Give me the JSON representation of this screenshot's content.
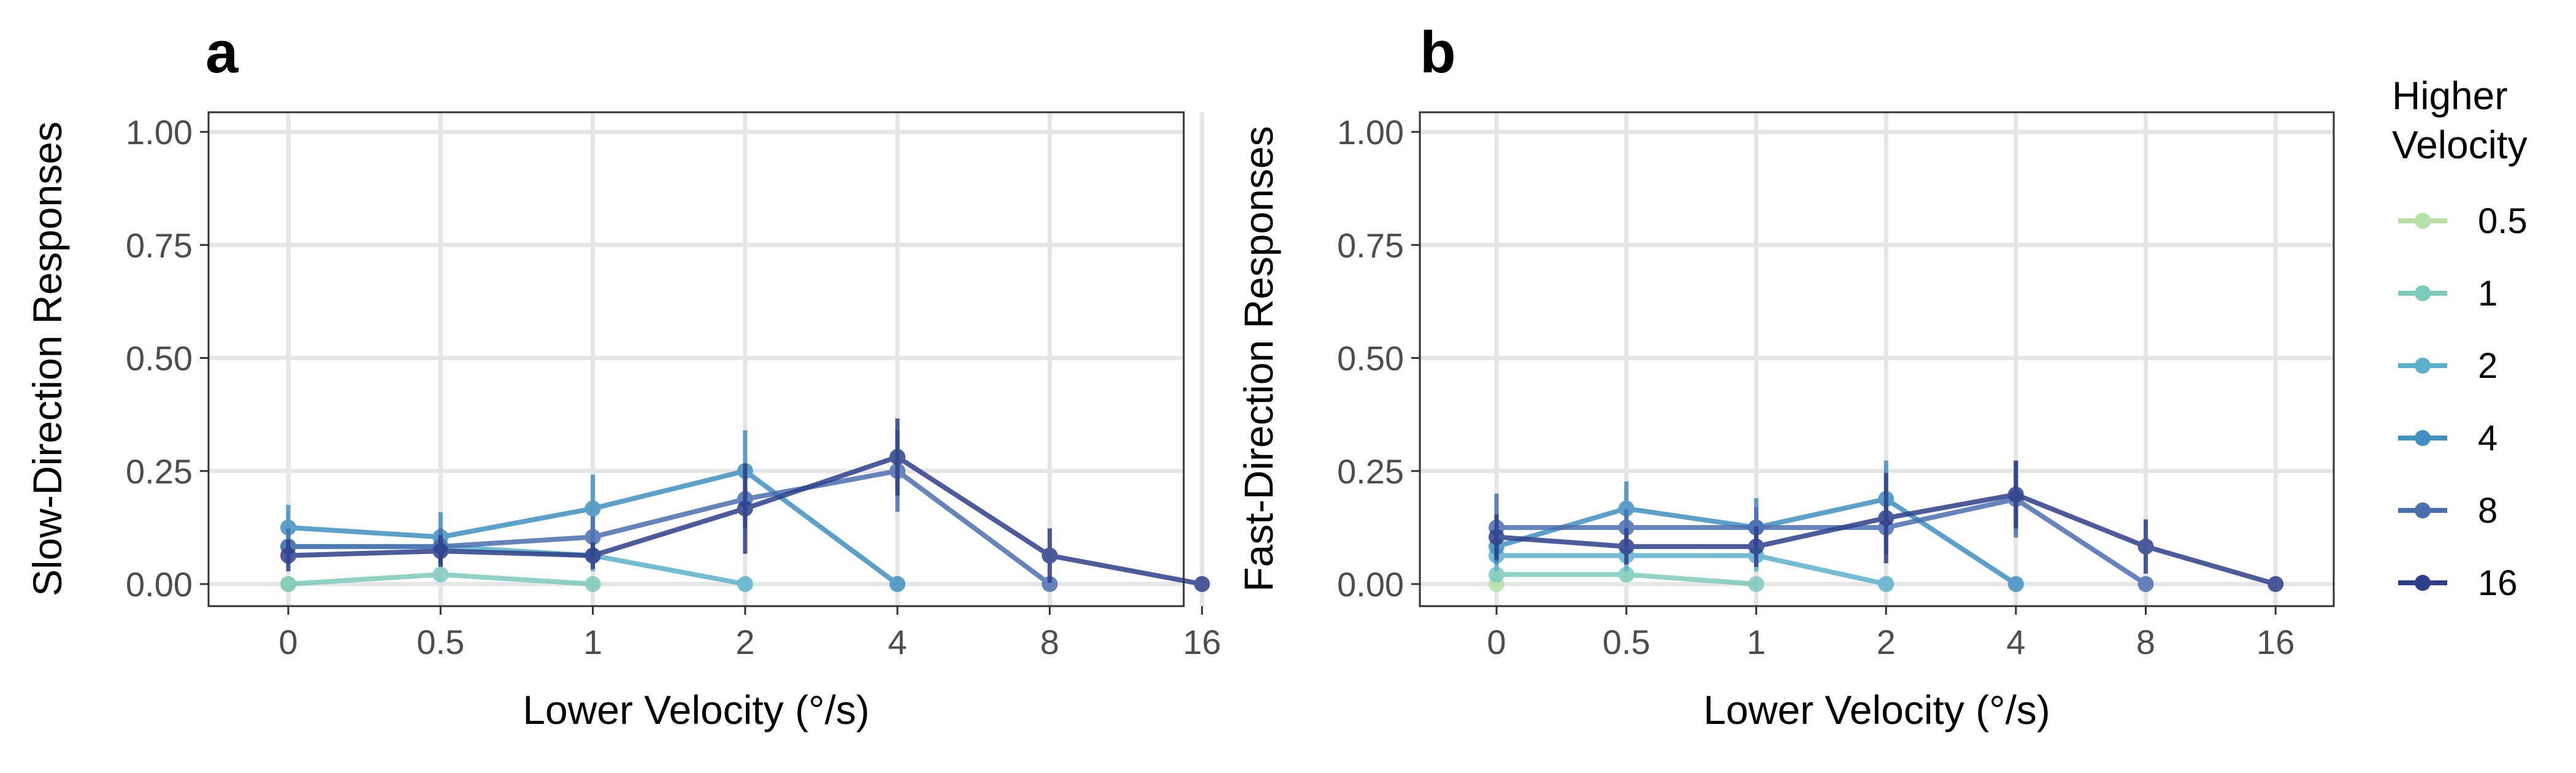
{
  "legend": {
    "title_line1": "Higher",
    "title_line2": "Velocity"
  },
  "chart_data": [
    {
      "type": "line",
      "panel": "a",
      "xlabel": "Lower Velocity (°/s)",
      "ylabel": "Slow-Direction Responses",
      "x_categories": [
        "0",
        "0.5",
        "1",
        "2",
        "4",
        "8",
        "16"
      ],
      "y_ticks": [
        "0.00",
        "0.25",
        "0.50",
        "0.75",
        "1.00"
      ],
      "ylim": [
        0,
        1
      ],
      "grid": true,
      "legend_position": "right",
      "series": [
        {
          "name": "0.5",
          "color": "#b5e1a8",
          "values": [
            0.0
          ],
          "errors": [
            0
          ]
        },
        {
          "name": "1",
          "color": "#7ccbbb",
          "values": [
            0.0,
            0.021,
            0.0
          ],
          "errors": [
            0,
            0.01,
            0
          ]
        },
        {
          "name": "2",
          "color": "#5bb1cc",
          "values": [
            0.083,
            0.083,
            0.063,
            0.0
          ],
          "errors": [
            0.04,
            0.04,
            0.035,
            0
          ]
        },
        {
          "name": "4",
          "color": "#3f90c0",
          "values": [
            0.125,
            0.104,
            0.167,
            0.25,
            0.0
          ],
          "errors": [
            0.05,
            0.055,
            0.075,
            0.09,
            0
          ]
        },
        {
          "name": "8",
          "color": "#4a6fb0",
          "values": [
            0.083,
            0.083,
            0.104,
            0.188,
            0.25,
            0.0
          ],
          "errors": [
            0.04,
            0.04,
            0.045,
            0.065,
            0.09,
            0
          ]
        },
        {
          "name": "16",
          "color": "#2d3f8a",
          "values": [
            0.063,
            0.073,
            0.063,
            0.167,
            0.281,
            0.063,
            0.0
          ],
          "errors": [
            0.035,
            0.035,
            0.03,
            0.1,
            0.085,
            0.06,
            0
          ]
        }
      ]
    },
    {
      "type": "line",
      "panel": "b",
      "xlabel": "Lower Velocity (°/s)",
      "ylabel": "Fast-Direction Responses",
      "x_categories": [
        "0",
        "0.5",
        "1",
        "2",
        "4",
        "8",
        "16"
      ],
      "y_ticks": [
        "0.00",
        "0.25",
        "0.50",
        "0.75",
        "1.00"
      ],
      "ylim": [
        0,
        1
      ],
      "grid": true,
      "legend_position": "right",
      "series": [
        {
          "name": "0.5",
          "color": "#b5e1a8",
          "values": [
            0.0
          ],
          "errors": [
            0
          ]
        },
        {
          "name": "1",
          "color": "#7ccbbb",
          "values": [
            0.021,
            0.021,
            0.0
          ],
          "errors": [
            0.01,
            0.01,
            0
          ]
        },
        {
          "name": "2",
          "color": "#5bb1cc",
          "values": [
            0.063,
            0.063,
            0.063,
            0.0
          ],
          "errors": [
            0.035,
            0.035,
            0.035,
            0
          ]
        },
        {
          "name": "4",
          "color": "#3f90c0",
          "values": [
            0.083,
            0.167,
            0.125,
            0.188,
            0.0
          ],
          "errors": [
            0.04,
            0.06,
            0.065,
            0.085,
            0
          ]
        },
        {
          "name": "8",
          "color": "#4a6fb0",
          "values": [
            0.125,
            0.125,
            0.125,
            0.125,
            0.188,
            0.0
          ],
          "errors": [
            0.075,
            0.04,
            0.045,
            0.06,
            0.085,
            0
          ]
        },
        {
          "name": "16",
          "color": "#2d3f8a",
          "values": [
            0.104,
            0.083,
            0.083,
            0.146,
            0.198,
            0.083,
            0.0
          ],
          "errors": [
            0.05,
            0.04,
            0.045,
            0.1,
            0.075,
            0.06,
            0
          ]
        }
      ]
    }
  ]
}
